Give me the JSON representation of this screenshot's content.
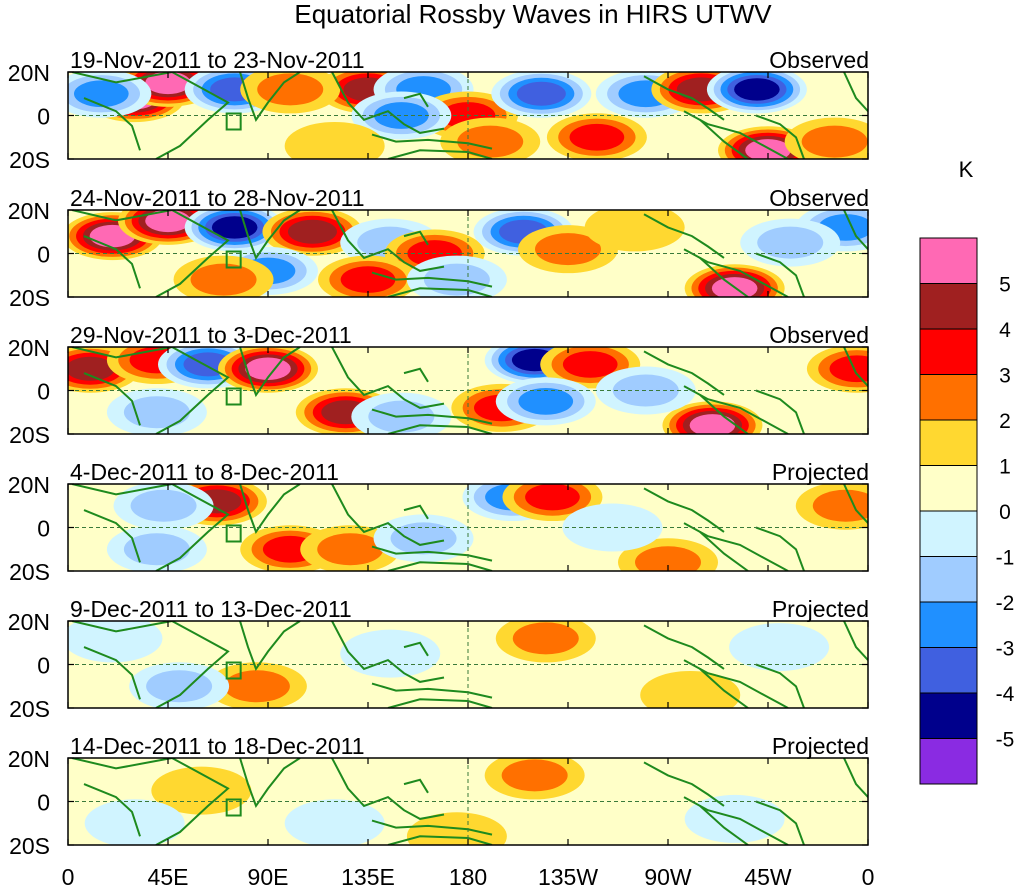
{
  "chart_data": {
    "type": "heatmap",
    "title": "Equatorial Rossby Waves in HIRS UTWV",
    "x_ticks": [
      "0",
      "45E",
      "90E",
      "135E",
      "180",
      "135W",
      "90W",
      "45W",
      "0"
    ],
    "y_ticks": [
      "20N",
      "0",
      "20S"
    ],
    "ylim": [
      -20,
      20
    ],
    "xlim": [
      0,
      360
    ],
    "colorbar": {
      "unit": "K",
      "tick_labels": [
        "5",
        "4",
        "3",
        "2",
        "1",
        "0",
        "-1",
        "-2",
        "-3",
        "-4",
        "-5"
      ],
      "colors": [
        "#ff69b4",
        "#a02020",
        "#ff0000",
        "#ff7000",
        "#ffd830",
        "#ffffc8",
        "#d0f4ff",
        "#a0ccff",
        "#2090ff",
        "#4060e0",
        "#00008c",
        "#8a2be2"
      ]
    },
    "panels": [
      {
        "period": "19-Nov-2011 to 23-Nov-2011",
        "label": "Observed",
        "blobs": [
          {
            "lon": 30,
            "lat": 8,
            "value": 5
          },
          {
            "lon": 45,
            "lat": 15,
            "value": 5
          },
          {
            "lon": 75,
            "lat": 12,
            "value": -4
          },
          {
            "lon": 135,
            "lat": 12,
            "value": 4
          },
          {
            "lon": 160,
            "lat": 12,
            "value": -3
          },
          {
            "lon": 180,
            "lat": 0,
            "value": 3
          },
          {
            "lon": 213,
            "lat": 10,
            "value": -4
          },
          {
            "lon": 238,
            "lat": -10,
            "value": 3
          },
          {
            "lon": 260,
            "lat": 10,
            "value": -3
          },
          {
            "lon": 285,
            "lat": 12,
            "value": 4
          },
          {
            "lon": 310,
            "lat": 12,
            "value": -5
          },
          {
            "lon": 315,
            "lat": -16,
            "value": 5
          },
          {
            "lon": 345,
            "lat": -12,
            "value": 2
          },
          {
            "lon": 150,
            "lat": 0,
            "value": -3
          },
          {
            "lon": 15,
            "lat": 10,
            "value": -3
          },
          {
            "lon": 100,
            "lat": 12,
            "value": 2
          },
          {
            "lon": 120,
            "lat": -14,
            "value": 1
          },
          {
            "lon": 190,
            "lat": -12,
            "value": 2
          }
        ]
      },
      {
        "period": "24-Nov-2011 to 28-Nov-2011",
        "label": "Observed",
        "blobs": [
          {
            "lon": 20,
            "lat": 8,
            "value": 5
          },
          {
            "lon": 45,
            "lat": 15,
            "value": 5
          },
          {
            "lon": 75,
            "lat": 12,
            "value": -5
          },
          {
            "lon": 110,
            "lat": 10,
            "value": 4
          },
          {
            "lon": 145,
            "lat": 5,
            "value": -2
          },
          {
            "lon": 165,
            "lat": 0,
            "value": 3
          },
          {
            "lon": 135,
            "lat": -12,
            "value": 3
          },
          {
            "lon": 205,
            "lat": 10,
            "value": -4
          },
          {
            "lon": 225,
            "lat": 2,
            "value": 2
          },
          {
            "lon": 255,
            "lat": 12,
            "value": 1
          },
          {
            "lon": 300,
            "lat": -16,
            "value": 5
          },
          {
            "lon": 350,
            "lat": 12,
            "value": -3
          },
          {
            "lon": 90,
            "lat": -8,
            "value": -3
          },
          {
            "lon": 70,
            "lat": -12,
            "value": 2
          },
          {
            "lon": 325,
            "lat": 5,
            "value": -2
          },
          {
            "lon": 175,
            "lat": -12,
            "value": -2
          }
        ]
      },
      {
        "period": "29-Nov-2011 to 3-Dec-2011",
        "label": "Observed",
        "blobs": [
          {
            "lon": 10,
            "lat": 10,
            "value": 4
          },
          {
            "lon": 40,
            "lat": 14,
            "value": 3
          },
          {
            "lon": 63,
            "lat": 12,
            "value": -4
          },
          {
            "lon": 90,
            "lat": 10,
            "value": 5
          },
          {
            "lon": 210,
            "lat": 14,
            "value": -5
          },
          {
            "lon": 235,
            "lat": 12,
            "value": 3
          },
          {
            "lon": 195,
            "lat": -8,
            "value": 3
          },
          {
            "lon": 215,
            "lat": -5,
            "value": -3
          },
          {
            "lon": 125,
            "lat": -10,
            "value": 4
          },
          {
            "lon": 290,
            "lat": -16,
            "value": 5
          },
          {
            "lon": 355,
            "lat": 10,
            "value": 3
          },
          {
            "lon": 40,
            "lat": -10,
            "value": -2
          },
          {
            "lon": 150,
            "lat": -12,
            "value": -2
          },
          {
            "lon": 260,
            "lat": 0,
            "value": -2
          }
        ]
      },
      {
        "period": "4-Dec-2011 to 8-Dec-2011",
        "label": "Projected",
        "blobs": [
          {
            "lon": 67,
            "lat": 12,
            "value": 4
          },
          {
            "lon": 43,
            "lat": 10,
            "value": -2
          },
          {
            "lon": 100,
            "lat": -10,
            "value": 3
          },
          {
            "lon": 127,
            "lat": -10,
            "value": 2
          },
          {
            "lon": 200,
            "lat": 14,
            "value": -3
          },
          {
            "lon": 218,
            "lat": 14,
            "value": 3
          },
          {
            "lon": 40,
            "lat": -10,
            "value": -2
          },
          {
            "lon": 270,
            "lat": -16,
            "value": 2
          },
          {
            "lon": 350,
            "lat": 10,
            "value": 2
          },
          {
            "lon": 160,
            "lat": -5,
            "value": -2
          },
          {
            "lon": 245,
            "lat": 0,
            "value": -1
          }
        ]
      },
      {
        "period": "9-Dec-2011 to 13-Dec-2011",
        "label": "Projected",
        "blobs": [
          {
            "lon": 215,
            "lat": 12,
            "value": 2
          },
          {
            "lon": 85,
            "lat": -10,
            "value": 2
          },
          {
            "lon": 50,
            "lat": -10,
            "value": -2
          },
          {
            "lon": 145,
            "lat": 5,
            "value": -1
          },
          {
            "lon": 280,
            "lat": -14,
            "value": 1
          },
          {
            "lon": 320,
            "lat": 8,
            "value": -1
          },
          {
            "lon": 20,
            "lat": 12,
            "value": -1
          }
        ]
      },
      {
        "period": "14-Dec-2011 to 18-Dec-2011",
        "label": "Projected",
        "blobs": [
          {
            "lon": 210,
            "lat": 12,
            "value": 2
          },
          {
            "lon": 175,
            "lat": -16,
            "value": 1
          },
          {
            "lon": 120,
            "lat": -10,
            "value": -1
          },
          {
            "lon": 60,
            "lat": 5,
            "value": 1
          },
          {
            "lon": 300,
            "lat": -8,
            "value": -1
          },
          {
            "lon": 30,
            "lat": -10,
            "value": -1
          }
        ]
      }
    ]
  }
}
